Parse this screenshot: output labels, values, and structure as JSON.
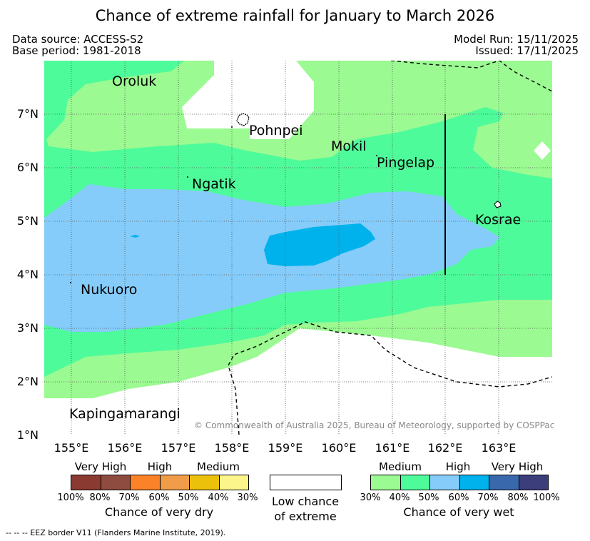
{
  "title": "Chance of extreme rainfall for January to March 2026",
  "data_source": "Data source: ACCESS-S2",
  "base_period": "Base period: 1981-2018",
  "model_run": "Model Run: 15/11/2025",
  "issued": "Issued: 17/11/2025",
  "map": {
    "lat_labels": [
      "7°N",
      "6°N",
      "5°N",
      "4°N",
      "3°N",
      "2°N",
      "1°N"
    ],
    "lon_labels": [
      "155°E",
      "156°E",
      "157°E",
      "158°E",
      "159°E",
      "160°E",
      "161°E",
      "162°E",
      "163°E"
    ],
    "places": [
      "Oroluk",
      "Pohnpei",
      "Mokil",
      "Pingelap",
      "Ngatik",
      "Kosrae",
      "Nukuoro",
      "Kapingamarangi"
    ],
    "copyright": "© Commonwealth of Australia 2025, Bureau of Meteorology, supported by COSPPac"
  },
  "legend": {
    "dry": {
      "categories": [
        "Very High",
        "High",
        "Medium"
      ],
      "ticks": [
        "100%",
        "80%",
        "70%",
        "60%",
        "50%",
        "40%",
        "30%"
      ],
      "colors": [
        "#8b3a32",
        "#8e4b40",
        "#fb8228",
        "#f09c48",
        "#ecc10c",
        "#fbf58c"
      ],
      "title": "Chance of very dry"
    },
    "low": {
      "line1": "Low chance",
      "line2": "of extreme"
    },
    "wet": {
      "categories": [
        "Medium",
        "High",
        "Very High"
      ],
      "ticks": [
        "30%",
        "40%",
        "50%",
        "60%",
        "70%",
        "80%",
        "100%"
      ],
      "colors": [
        "#9bfa91",
        "#4efb9a",
        "#85ccfa",
        "#00b2ec",
        "#3a68ac",
        "#3c3e7c"
      ],
      "title": "Chance of very wet"
    }
  },
  "footnote": "-- -- -- EEZ border V11 (Flanders Marine Institute, 2019)."
}
